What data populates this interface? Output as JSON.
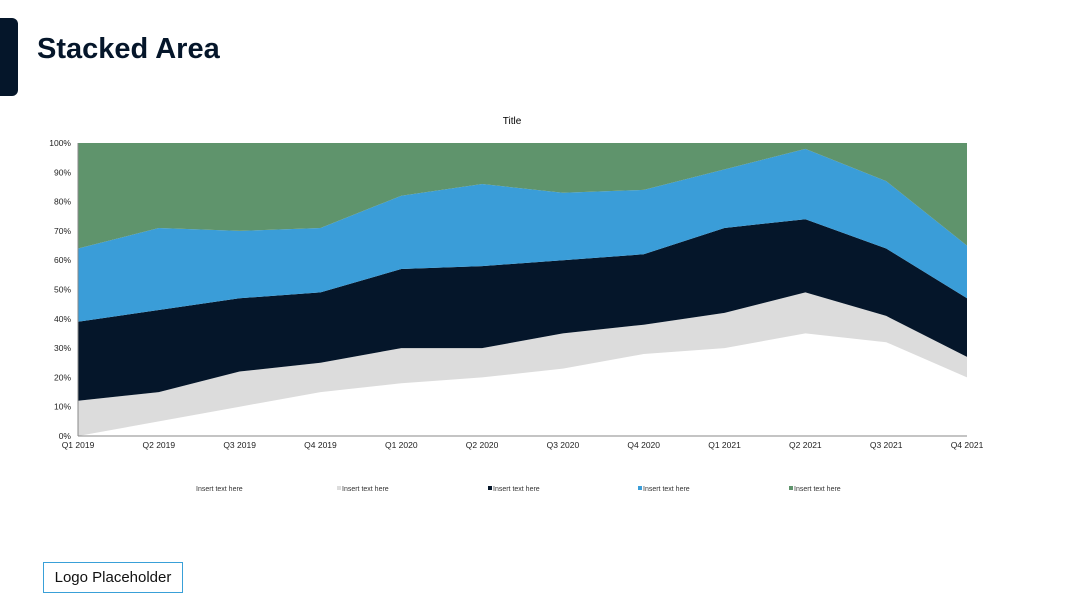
{
  "page": {
    "title": "Stacked Area",
    "logo": "Logo Placeholder"
  },
  "chart_data": {
    "type": "area",
    "stacked": true,
    "title": "Title",
    "xlabel": "",
    "ylabel": "",
    "ylim": [
      0,
      100
    ],
    "y_ticks": [
      "0%",
      "10%",
      "20%",
      "30%",
      "40%",
      "50%",
      "60%",
      "70%",
      "80%",
      "90%",
      "100%"
    ],
    "categories": [
      "Q1 2019",
      "Q2 2019",
      "Q3 2019",
      "Q4 2019",
      "Q1 2020",
      "Q2 2020",
      "Q3 2020",
      "Q4 2020",
      "Q1 2021",
      "Q2 2021",
      "Q3 2021",
      "Q4 2021"
    ],
    "legend_position": "bottom",
    "series": [
      {
        "name": "Insert text here",
        "color": "#ffffff",
        "values": [
          0,
          5,
          10,
          15,
          18,
          20,
          23,
          28,
          30,
          35,
          32,
          20
        ]
      },
      {
        "name": "Insert text here",
        "color": "#dcdcdc",
        "values": [
          12,
          10,
          12,
          10,
          12,
          10,
          12,
          10,
          12,
          14,
          9,
          7
        ]
      },
      {
        "name": "Insert text here",
        "color": "#05162a",
        "values": [
          27,
          28,
          25,
          24,
          27,
          28,
          25,
          24,
          29,
          25,
          23,
          20
        ]
      },
      {
        "name": "Insert text here",
        "color": "#3a9dd8",
        "values": [
          25,
          28,
          23,
          22,
          25,
          28,
          23,
          22,
          20,
          24,
          23,
          18
        ]
      },
      {
        "name": "Insert text here",
        "color": "#5f946c",
        "values": [
          36,
          29,
          30,
          29,
          18,
          14,
          17,
          16,
          9,
          2,
          13,
          35
        ]
      }
    ]
  }
}
